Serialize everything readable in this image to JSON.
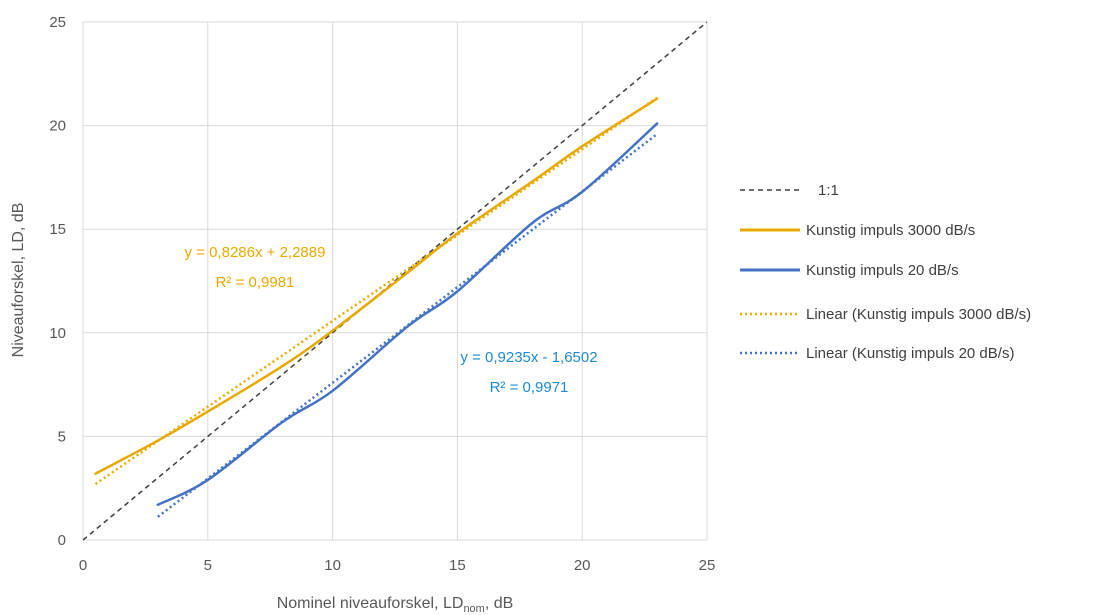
{
  "chart_data": {
    "type": "line",
    "title": "",
    "xlabel": "Nominel niveauforskel, LD",
    "xlabel_sub": "nom",
    "xlabel_suffix": ", dB",
    "ylabel": "Niveauforskel, LD, dB",
    "xlim": [
      0,
      25
    ],
    "ylim": [
      0,
      25
    ],
    "xticks": [
      0,
      5,
      10,
      15,
      20,
      25
    ],
    "yticks": [
      0,
      5,
      10,
      15,
      20,
      25
    ],
    "grid": true,
    "legend_position": "right",
    "series": [
      {
        "name": "1:1",
        "color": "#404040",
        "style": "dashed",
        "x": [
          0,
          25
        ],
        "y": [
          0,
          25
        ]
      },
      {
        "name": "Kunstig impuls 3000 dB/s",
        "color": "#E8A900",
        "style": "solid",
        "x": [
          0.5,
          3,
          5,
          8,
          10,
          13,
          15,
          18,
          20,
          23
        ],
        "y": [
          3.2,
          4.8,
          6.2,
          8.4,
          10.1,
          12.9,
          14.8,
          17.3,
          19.0,
          21.3
        ]
      },
      {
        "name": "Kunstig impuls 20 dB/s",
        "color": "#4472C4",
        "style": "solid",
        "x": [
          3,
          5,
          8,
          10,
          13,
          15,
          18,
          20,
          23
        ],
        "y": [
          1.7,
          2.9,
          5.7,
          7.2,
          10.3,
          12.0,
          15.3,
          16.8,
          20.1
        ]
      },
      {
        "name": "Linear (Kunstig impuls 3000 dB/s)",
        "color": "#E8A900",
        "style": "dotted",
        "trend": {
          "slope": 0.8286,
          "intercept": 2.2889,
          "x_range": [
            0.5,
            23
          ]
        }
      },
      {
        "name": "Linear (Kunstig impuls 20 dB/s)",
        "color": "#4472C4",
        "style": "dotted",
        "trend": {
          "slope": 0.9235,
          "intercept": -1.6502,
          "x_range": [
            3,
            23
          ]
        }
      }
    ],
    "annotations": [
      {
        "text": "y = 0,8286x + 2,2889",
        "color": "#E8A900"
      },
      {
        "text": "R² = 0,9981",
        "color": "#E8A900"
      },
      {
        "text": "y = 0,9235x - 1,6502",
        "color": "#1F8AD2"
      },
      {
        "text": "R² = 0,9971",
        "color": "#1F8AD2"
      }
    ]
  }
}
